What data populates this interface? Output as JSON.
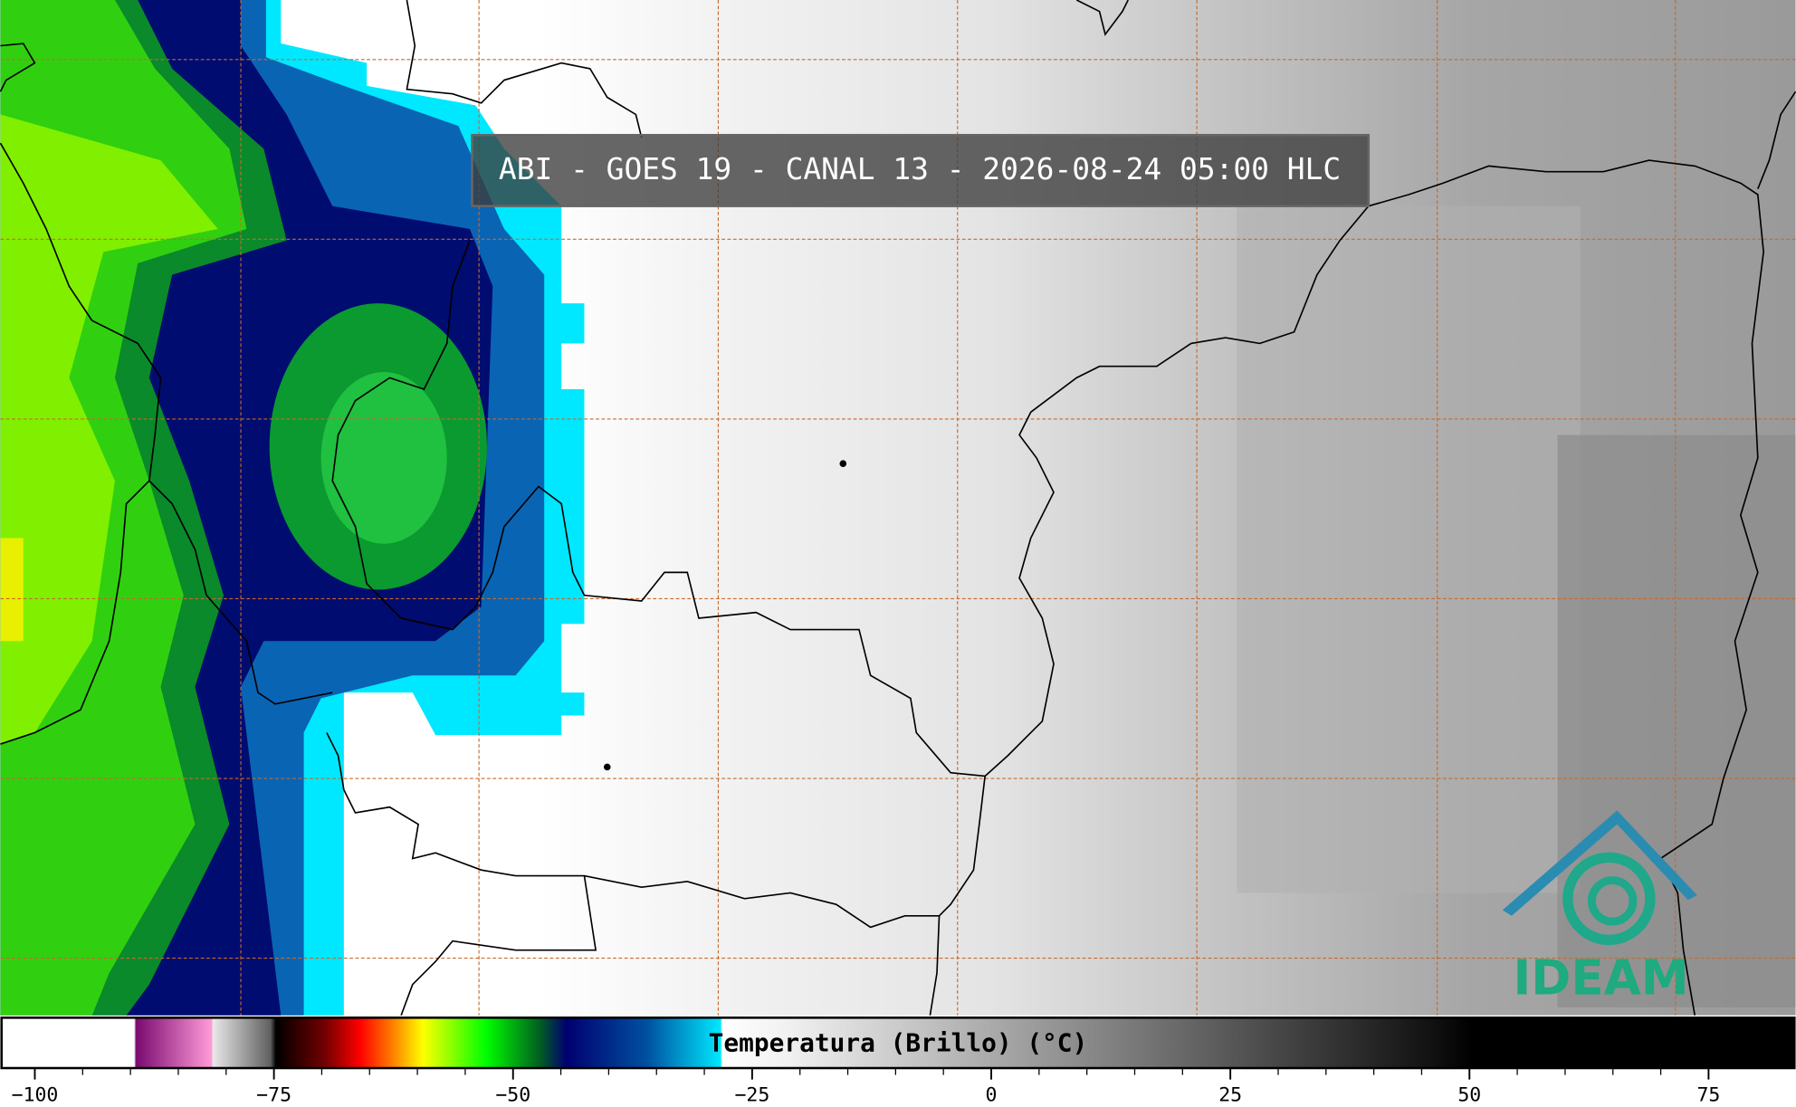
{
  "map": {
    "title": "ABI - GOES 19 - CANAL 13 - 2026-08-24 05:00 HLC",
    "colorbar": {
      "label": "Temperatura (Brillo) (°C)",
      "xlim": [
        -103.6,
        84.1
      ],
      "ticks": [
        {
          "value": -100,
          "label": "−100"
        },
        {
          "value": -75,
          "label": "−75"
        },
        {
          "value": -50,
          "label": "−50"
        },
        {
          "value": -25,
          "label": "−25"
        },
        0,
        25,
        50,
        75
      ]
    }
  },
  "logo": {
    "text": "IDEAM"
  }
}
